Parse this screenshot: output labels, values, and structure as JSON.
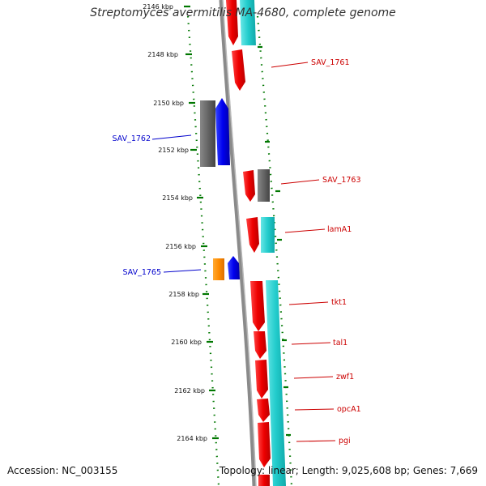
{
  "title": "Streptomyces avermitilis MA-4680, complete genome",
  "footer": {
    "accession": "Accession: NC_003155",
    "summary": "Topology: linear; Length: 9,025,608 bp; Genes: 7,669"
  },
  "scale_labels": [
    "2146 kbp",
    "2148 kbp",
    "2150 kbp",
    "2152 kbp",
    "2154 kbp",
    "2156 kbp",
    "2158 kbp",
    "2160 kbp",
    "2162 kbp",
    "2164 kbp"
  ],
  "gene_labels": [
    {
      "text": "SAV_1761",
      "strand": "forward"
    },
    {
      "text": "SAV_1762",
      "strand": "reverse"
    },
    {
      "text": "SAV_1763",
      "strand": "forward"
    },
    {
      "text": "lamA1",
      "strand": "forward"
    },
    {
      "text": "SAV_1765",
      "strand": "reverse"
    },
    {
      "text": "tkt1",
      "strand": "forward"
    },
    {
      "text": "tal1",
      "strand": "forward"
    },
    {
      "text": "zwf1",
      "strand": "forward"
    },
    {
      "text": "opcA1",
      "strand": "forward"
    },
    {
      "text": "pgi",
      "strand": "forward"
    }
  ],
  "colors": {
    "forward_label": "#cc0000",
    "reverse_label": "#0000cc",
    "cds_red": "#ee0000",
    "cds_blue": "#0000ee",
    "cds_orange": "#ff8c00",
    "cds_gray": "#666666",
    "rna_cyan": "#22cccc",
    "backbone": "#8a8a8a",
    "gc_dots": "#007700"
  }
}
